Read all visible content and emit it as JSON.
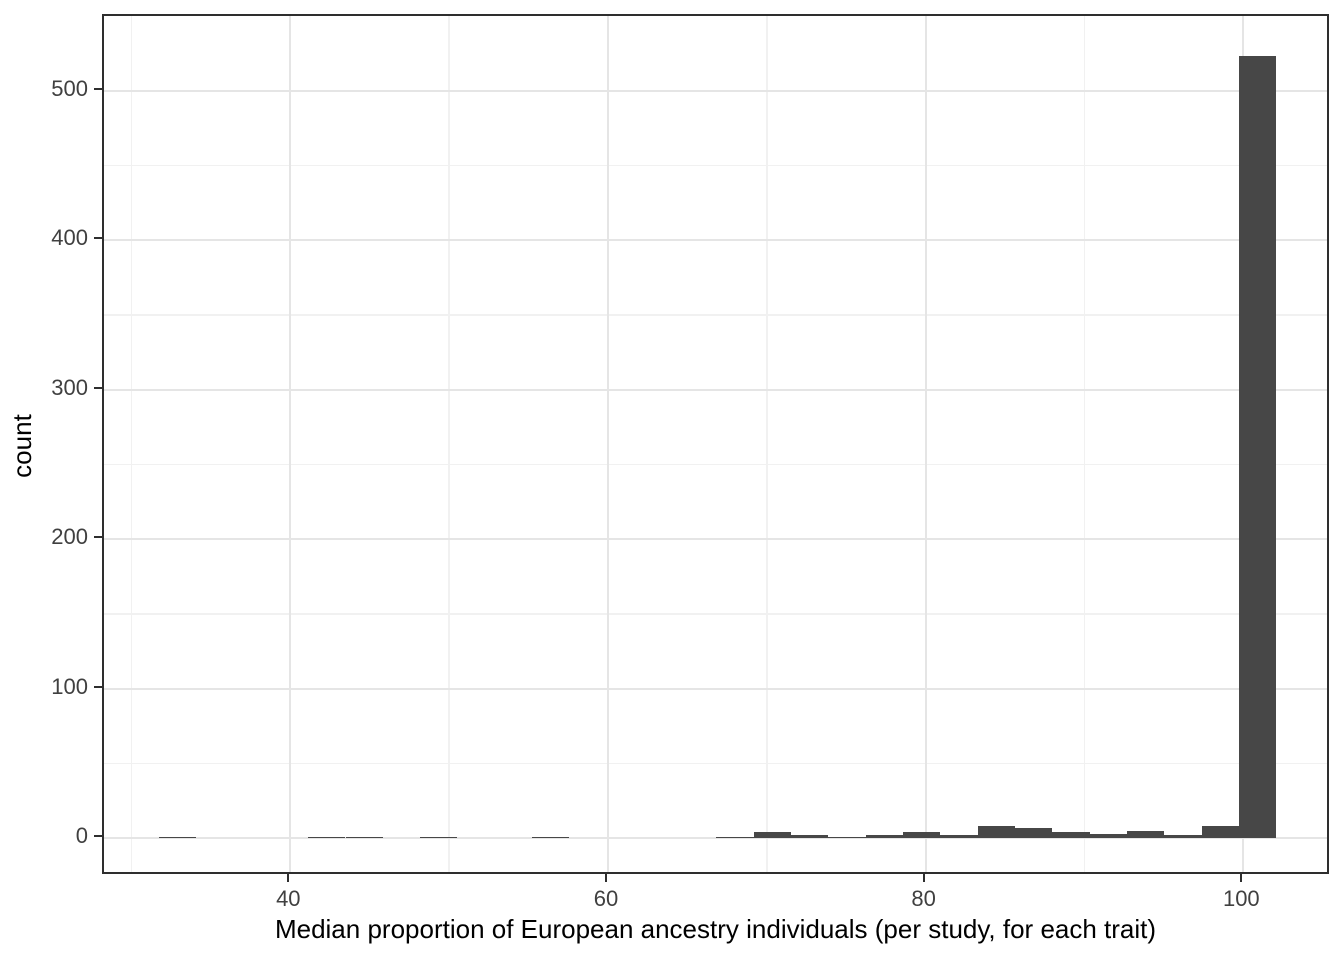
{
  "chart_data": {
    "type": "bar",
    "subtype": "histogram",
    "title": "",
    "xlabel": "Median proportion of European ancestry individuals (per study, for each trait)",
    "ylabel": "count",
    "x_ticks": [
      40,
      60,
      80,
      100
    ],
    "x_minor_ticks": [
      30,
      50,
      70,
      90
    ],
    "y_ticks": [
      0,
      100,
      200,
      300,
      400,
      500
    ],
    "y_minor_ticks": [
      50,
      150,
      250,
      350,
      450
    ],
    "xlim": [
      28.27,
      105.52
    ],
    "ylim": [
      -25.3,
      549.9
    ],
    "grid": "on",
    "legend": "none",
    "bin_width": 2.35,
    "bars": [
      {
        "center": 32.9,
        "count": 1
      },
      {
        "center": 42.3,
        "count": 1
      },
      {
        "center": 44.65,
        "count": 1
      },
      {
        "center": 49.35,
        "count": 1
      },
      {
        "center": 56.4,
        "count": 1
      },
      {
        "center": 68.0,
        "count": 1
      },
      {
        "center": 70.35,
        "count": 4
      },
      {
        "center": 72.7,
        "count": 2
      },
      {
        "center": 75.05,
        "count": 1
      },
      {
        "center": 77.4,
        "count": 2
      },
      {
        "center": 79.75,
        "count": 4
      },
      {
        "center": 82.1,
        "count": 2
      },
      {
        "center": 84.45,
        "count": 8
      },
      {
        "center": 86.8,
        "count": 7
      },
      {
        "center": 89.15,
        "count": 4
      },
      {
        "center": 91.5,
        "count": 3
      },
      {
        "center": 93.85,
        "count": 5
      },
      {
        "center": 96.2,
        "count": 2
      },
      {
        "center": 98.55,
        "count": 8
      },
      {
        "center": 100.9,
        "count": 523
      }
    ],
    "colors": {
      "bar_fill": "#474747",
      "grid_major": "#e5e5e5",
      "grid_minor": "#f1f1f1",
      "panel_border": "#2e2e2e",
      "tick_text": "#404040",
      "title_text": "#000000"
    }
  }
}
